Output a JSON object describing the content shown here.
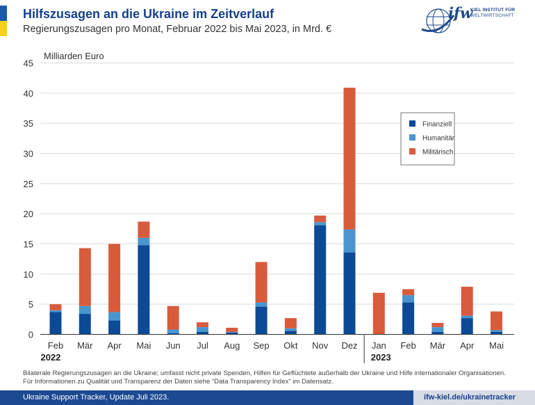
{
  "header": {
    "title": "Hilfszusagen an die Ukraine im Zeitverlauf",
    "subtitle": "Regierungszusagen pro Monat, Februar 2022 bis Mai 2023, in Mrd. €"
  },
  "logo": {
    "wordmark": "ifw",
    "institute_line1": "KIEL INSTITUT FÜR",
    "institute_line2": "WELTWIRTSCHAFT"
  },
  "colors": {
    "finanziell": "#0c4a96",
    "humanitaer": "#4a95d0",
    "militaerisch": "#d85b3c",
    "axis": "#333333",
    "grid": "#d9d9d9"
  },
  "chart_data": {
    "type": "bar",
    "stacked": true,
    "title": "Hilfszusagen an die Ukraine im Zeitverlauf",
    "ylabel": "Milliarden Euro",
    "ylim": [
      0,
      45
    ],
    "yticks": [
      0,
      5,
      10,
      15,
      20,
      25,
      30,
      35,
      40,
      45
    ],
    "grid": true,
    "legend_position": "top-right",
    "categories": [
      "Feb",
      "Mär",
      "Apr",
      "Mai",
      "Jun",
      "Jul",
      "Aug",
      "Sep",
      "Okt",
      "Nov",
      "Dez",
      "Jan",
      "Feb",
      "Mär",
      "Apr",
      "Mai"
    ],
    "year_labels": [
      {
        "label": "2022",
        "start_index": 0
      },
      {
        "label": "2023",
        "start_index": 11
      }
    ],
    "series": [
      {
        "name": "Finanziell",
        "values": [
          3.7,
          3.4,
          2.3,
          14.8,
          0.2,
          0.4,
          0.3,
          4.6,
          0.6,
          18.1,
          13.6,
          0.0,
          5.3,
          0.4,
          2.7,
          0.4
        ]
      },
      {
        "name": "Humanitär",
        "values": [
          0.3,
          1.3,
          1.4,
          1.2,
          0.6,
          0.8,
          0.1,
          0.7,
          0.4,
          0.5,
          3.8,
          0.0,
          1.2,
          0.8,
          0.4,
          0.3
        ]
      },
      {
        "name": "Militärisch",
        "values": [
          1.0,
          9.6,
          11.3,
          2.7,
          3.9,
          0.8,
          0.7,
          6.7,
          1.7,
          1.1,
          23.5,
          6.9,
          1.0,
          0.7,
          4.8,
          3.1
        ]
      }
    ]
  },
  "footnote": {
    "line1": "Bilaterale Regierungszusagen an die Ukraine; umfasst nicht private Spenden, Hilfen für Geflüchtete außerhalb der Ukraine und Hilfe internationaler Organisationen.",
    "line2": "Für Informationen zu Qualität und Transparenz der Daten siehe “Data Transparency Index” im Datensatz."
  },
  "footer": {
    "left": "Ukraine Support Tracker, Update Juli 2023.",
    "right": "ifw-kiel.de/ukrainetracker"
  }
}
